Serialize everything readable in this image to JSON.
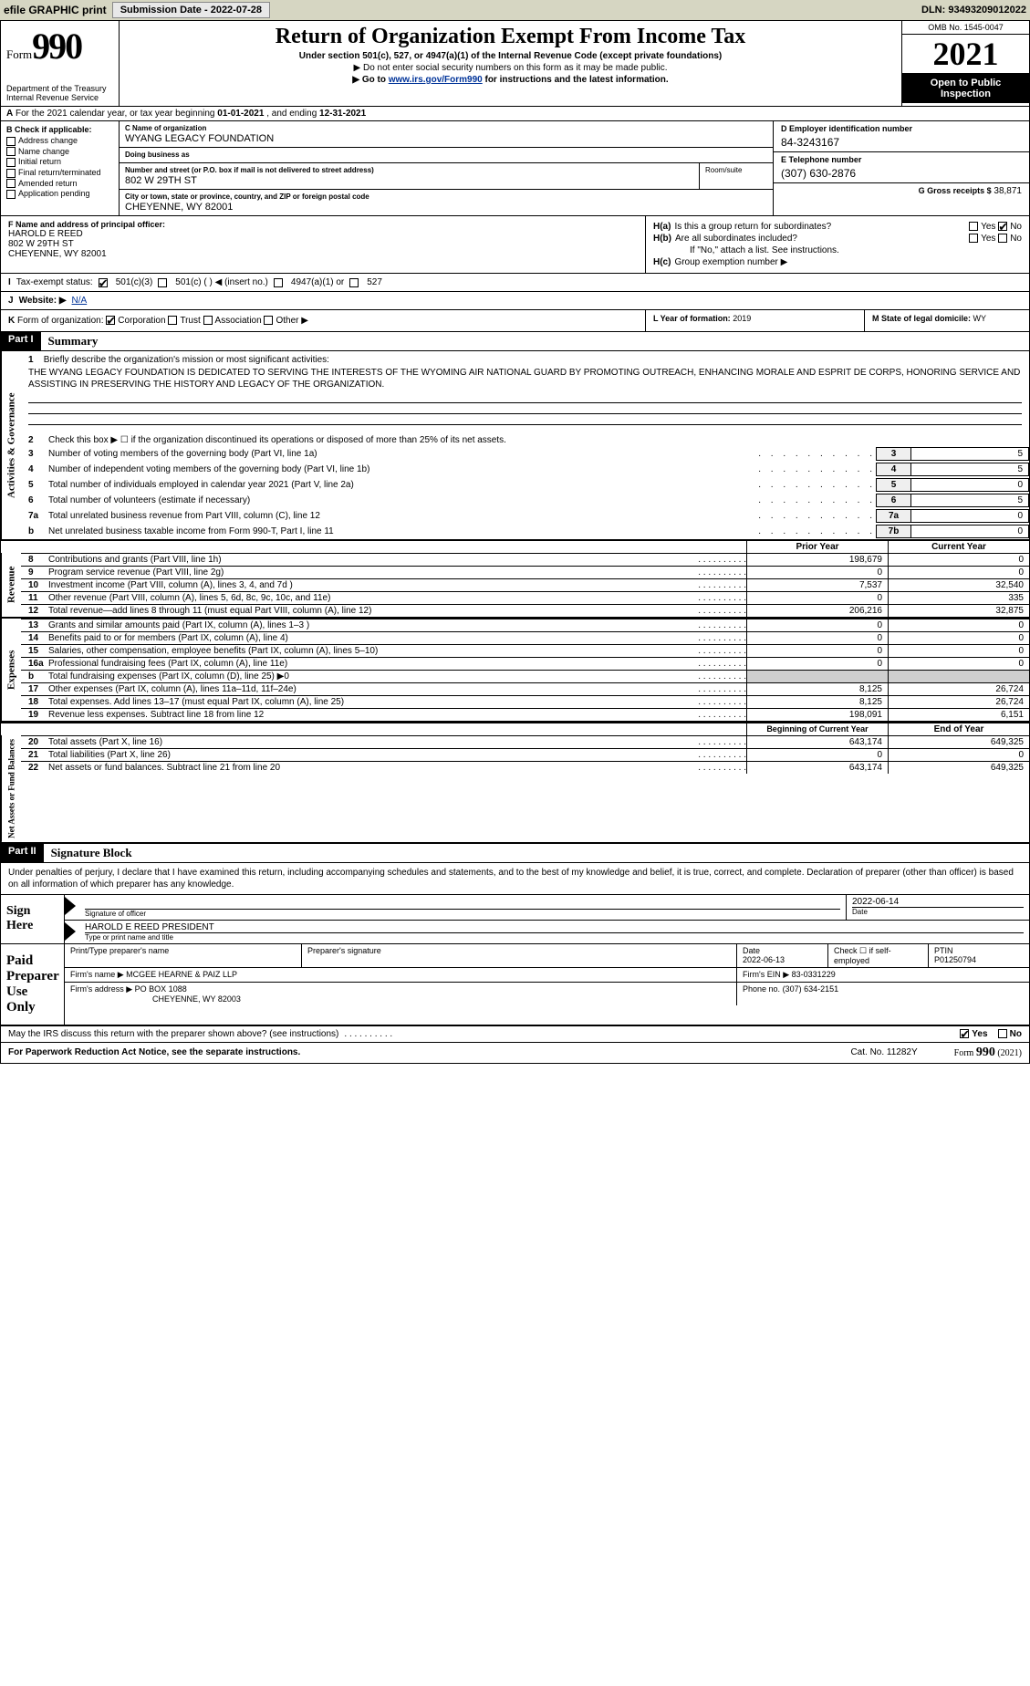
{
  "topbar": {
    "efile_label": "efile GRAPHIC print",
    "sub_btn": "Submission Date - 2022-07-28",
    "dln": "DLN: 93493209012022"
  },
  "header": {
    "form_word": "Form",
    "form_num": "990",
    "dept": "Department of the Treasury",
    "irs": "Internal Revenue Service",
    "title": "Return of Organization Exempt From Income Tax",
    "sub1": "Under section 501(c), 527, or 4947(a)(1) of the Internal Revenue Code (except private foundations)",
    "sub2": "▶ Do not enter social security numbers on this form as it may be made public.",
    "sub3_pre": "▶ Go to ",
    "sub3_link": "www.irs.gov/Form990",
    "sub3_post": " for instructions and the latest information.",
    "omb": "OMB No. 1545-0047",
    "year": "2021",
    "open1": "Open to Public",
    "open2": "Inspection"
  },
  "rowA": {
    "label": "A",
    "text_pre": "For the 2021 calendar year, or tax year beginning ",
    "begin": "01-01-2021",
    "mid": " , and ending ",
    "end": "12-31-2021"
  },
  "colB": {
    "label": "B Check if applicable:",
    "items": [
      "Address change",
      "Name change",
      "Initial return",
      "Final return/terminated",
      "Amended return",
      "Application pending"
    ]
  },
  "colC": {
    "name_label": "C Name of organization",
    "name": "WYANG LEGACY FOUNDATION",
    "dba_label": "Doing business as",
    "dba": "",
    "addr_label": "Number and street (or P.O. box if mail is not delivered to street address)",
    "room_label": "Room/suite",
    "addr": "802 W 29TH ST",
    "city_label": "City or town, state or province, country, and ZIP or foreign postal code",
    "city": "CHEYENNE, WY  82001"
  },
  "colD": {
    "label": "D Employer identification number",
    "value": "84-3243167"
  },
  "colE": {
    "label": "E Telephone number",
    "value": "(307) 630-2876"
  },
  "colG": {
    "label": "G Gross receipts $",
    "value": "38,871"
  },
  "colF": {
    "label": "F  Name and address of principal officer:",
    "name": "HAROLD E REED",
    "addr": "802 W 29TH ST",
    "city": "CHEYENNE, WY  82001"
  },
  "colH": {
    "ha_lbl": "H(a)",
    "ha_q": "Is this a group return for subordinates?",
    "hb_lbl": "H(b)",
    "hb_q": "Are all subordinates included?",
    "hb_note": "If \"No,\" attach a list. See instructions.",
    "hc_lbl": "H(c)",
    "hc_q": "Group exemption number ▶",
    "yes": "Yes",
    "no": "No"
  },
  "rowI": {
    "label": "I",
    "title": "Tax-exempt status:",
    "o1": "501(c)(3)",
    "o2": "501(c) (   ) ◀ (insert no.)",
    "o3": "4947(a)(1) or",
    "o4": "527"
  },
  "rowJ": {
    "label": "J",
    "title": "Website: ▶",
    "value": "N/A"
  },
  "rowK": {
    "label": "K",
    "title": "Form of organization:",
    "o1": "Corporation",
    "o2": "Trust",
    "o3": "Association",
    "o4": "Other ▶"
  },
  "colL": {
    "label": "L Year of formation:",
    "value": "2019"
  },
  "colM": {
    "label": "M State of legal domicile:",
    "value": "WY"
  },
  "partI": {
    "hdr": "Part I",
    "title": "Summary"
  },
  "mission": {
    "num": "1",
    "label": "Briefly describe the organization's mission or most significant activities:",
    "text": "THE WYANG LEGACY FOUNDATION IS DEDICATED TO SERVING THE INTERESTS OF THE WYOMING AIR NATIONAL GUARD BY PROMOTING OUTREACH, ENHANCING MORALE AND ESPRIT DE CORPS, HONORING SERVICE AND ASSISTING IN PRESERVING THE HISTORY AND LEGACY OF THE ORGANIZATION."
  },
  "side": {
    "gov": "Activities & Governance",
    "rev": "Revenue",
    "exp": "Expenses",
    "net": "Net Assets or Fund Balances"
  },
  "lines_gov": [
    {
      "n": "2",
      "t": "Check this box ▶ ☐  if the organization discontinued its operations or disposed of more than 25% of its net assets.",
      "box": "",
      "val": ""
    },
    {
      "n": "3",
      "t": "Number of voting members of the governing body (Part VI, line 1a)",
      "box": "3",
      "val": "5"
    },
    {
      "n": "4",
      "t": "Number of independent voting members of the governing body (Part VI, line 1b)",
      "box": "4",
      "val": "5"
    },
    {
      "n": "5",
      "t": "Total number of individuals employed in calendar year 2021 (Part V, line 2a)",
      "box": "5",
      "val": "0"
    },
    {
      "n": "6",
      "t": "Total number of volunteers (estimate if necessary)",
      "box": "6",
      "val": "5"
    },
    {
      "n": "7a",
      "t": "Total unrelated business revenue from Part VIII, column (C), line 12",
      "box": "7a",
      "val": "0"
    },
    {
      "n": "b",
      "t": "Net unrelated business taxable income from Form 990-T, Part I, line 11",
      "box": "7b",
      "val": "0"
    }
  ],
  "col_hdrs": {
    "prior": "Prior Year",
    "curr": "Current Year"
  },
  "lines_rev": [
    {
      "n": "8",
      "t": "Contributions and grants (Part VIII, line 1h)",
      "p": "198,679",
      "c": "0"
    },
    {
      "n": "9",
      "t": "Program service revenue (Part VIII, line 2g)",
      "p": "0",
      "c": "0"
    },
    {
      "n": "10",
      "t": "Investment income (Part VIII, column (A), lines 3, 4, and 7d )",
      "p": "7,537",
      "c": "32,540"
    },
    {
      "n": "11",
      "t": "Other revenue (Part VIII, column (A), lines 5, 6d, 8c, 9c, 10c, and 11e)",
      "p": "0",
      "c": "335"
    },
    {
      "n": "12",
      "t": "Total revenue—add lines 8 through 11 (must equal Part VIII, column (A), line 12)",
      "p": "206,216",
      "c": "32,875"
    }
  ],
  "lines_exp": [
    {
      "n": "13",
      "t": "Grants and similar amounts paid (Part IX, column (A), lines 1–3 )",
      "p": "0",
      "c": "0"
    },
    {
      "n": "14",
      "t": "Benefits paid to or for members (Part IX, column (A), line 4)",
      "p": "0",
      "c": "0"
    },
    {
      "n": "15",
      "t": "Salaries, other compensation, employee benefits (Part IX, column (A), lines 5–10)",
      "p": "0",
      "c": "0"
    },
    {
      "n": "16a",
      "t": "Professional fundraising fees (Part IX, column (A), line 11e)",
      "p": "0",
      "c": "0"
    },
    {
      "n": "b",
      "t": "Total fundraising expenses (Part IX, column (D), line 25) ▶0",
      "p": "",
      "c": "",
      "grey": true
    },
    {
      "n": "17",
      "t": "Other expenses (Part IX, column (A), lines 11a–11d, 11f–24e)",
      "p": "8,125",
      "c": "26,724"
    },
    {
      "n": "18",
      "t": "Total expenses. Add lines 13–17 (must equal Part IX, column (A), line 25)",
      "p": "8,125",
      "c": "26,724"
    },
    {
      "n": "19",
      "t": "Revenue less expenses. Subtract line 18 from line 12",
      "p": "198,091",
      "c": "6,151"
    }
  ],
  "net_hdrs": {
    "begin": "Beginning of Current Year",
    "end": "End of Year"
  },
  "lines_net": [
    {
      "n": "20",
      "t": "Total assets (Part X, line 16)",
      "p": "643,174",
      "c": "649,325"
    },
    {
      "n": "21",
      "t": "Total liabilities (Part X, line 26)",
      "p": "0",
      "c": "0"
    },
    {
      "n": "22",
      "t": "Net assets or fund balances. Subtract line 21 from line 20",
      "p": "643,174",
      "c": "649,325"
    }
  ],
  "partII": {
    "hdr": "Part II",
    "title": "Signature Block"
  },
  "sig_intro": "Under penalties of perjury, I declare that I have examined this return, including accompanying schedules and statements, and to the best of my knowledge and belief, it is true, correct, and complete. Declaration of preparer (other than officer) is based on all information of which preparer has any knowledge.",
  "sign": {
    "here": "Sign Here",
    "sig_lbl": "Signature of officer",
    "date_lbl": "Date",
    "date": "2022-06-14",
    "name": "HAROLD E REED  PRESIDENT",
    "name_lbl": "Type or print name and title"
  },
  "prep": {
    "title": "Paid Preparer Use Only",
    "pt_lbl": "Print/Type preparer's name",
    "sig_lbl": "Preparer's signature",
    "date_lbl": "Date",
    "date": "2022-06-13",
    "self_lbl": "Check ☐ if self-employed",
    "ptin_lbl": "PTIN",
    "ptin": "P01250794",
    "firm_name_lbl": "Firm's name    ▶",
    "firm_name": "MCGEE HEARNE & PAIZ LLP",
    "firm_ein_lbl": "Firm's EIN ▶",
    "firm_ein": "83-0331229",
    "firm_addr_lbl": "Firm's address ▶",
    "firm_addr1": "PO BOX 1088",
    "firm_addr2": "CHEYENNE, WY  82003",
    "phone_lbl": "Phone no.",
    "phone": "(307) 634-2151"
  },
  "may_discuss": {
    "text": "May the IRS discuss this return with the preparer shown above? (see instructions)",
    "yes": "Yes",
    "no": "No"
  },
  "footer": {
    "left": "For Paperwork Reduction Act Notice, see the separate instructions.",
    "mid": "Cat. No. 11282Y",
    "right_pre": "Form ",
    "right_num": "990",
    "right_post": " (2021)"
  },
  "dots": " .   .   .   .   .   .   .   .   .   ."
}
